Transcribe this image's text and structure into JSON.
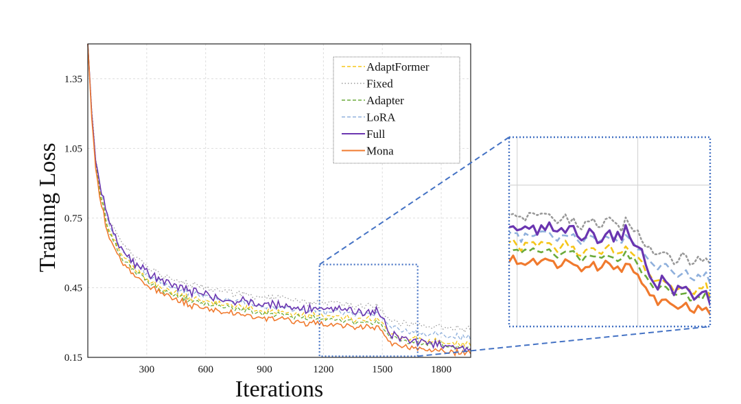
{
  "chart_data": {
    "type": "line",
    "xlabel": "Iterations",
    "ylabel": "Training Loss",
    "xlim": [
      0,
      1950
    ],
    "ylim": [
      0.15,
      1.5
    ],
    "xticks": [
      300,
      600,
      900,
      1200,
      1500,
      1800
    ],
    "xtick_labels": [
      "300",
      "600",
      "900",
      "1200",
      "1500",
      "1800"
    ],
    "yticks": [
      0.15,
      0.45,
      0.75,
      1.05,
      1.35
    ],
    "ytick_labels": [
      "0.15",
      "0.45",
      "0.75",
      "1.05",
      "1.35"
    ],
    "grid": true,
    "legend_position": "top-right",
    "inset": {
      "type": "zoom",
      "xlim": [
        1180,
        1680
      ],
      "ylim": [
        0.155,
        0.55
      ],
      "location": "right"
    },
    "series": [
      {
        "name": "AdaptFormer",
        "color": "#f5c518",
        "style": "dashed",
        "base": [
          [
            0,
            1.5
          ],
          [
            20,
            1.2
          ],
          [
            40,
            1.0
          ],
          [
            60,
            0.88
          ],
          [
            100,
            0.72
          ],
          [
            150,
            0.62
          ],
          [
            200,
            0.56
          ],
          [
            300,
            0.49
          ],
          [
            400,
            0.44
          ],
          [
            500,
            0.41
          ],
          [
            600,
            0.39
          ],
          [
            700,
            0.38
          ],
          [
            800,
            0.365
          ],
          [
            900,
            0.35
          ],
          [
            1000,
            0.34
          ],
          [
            1100,
            0.33
          ],
          [
            1200,
            0.325
          ],
          [
            1300,
            0.32
          ],
          [
            1400,
            0.315
          ],
          [
            1500,
            0.31
          ],
          [
            1530,
            0.26
          ],
          [
            1600,
            0.24
          ],
          [
            1700,
            0.225
          ],
          [
            1800,
            0.215
          ],
          [
            1950,
            0.205
          ]
        ]
      },
      {
        "name": "Fixed",
        "color": "#999999",
        "style": "dotted",
        "base": [
          [
            0,
            1.5
          ],
          [
            20,
            1.22
          ],
          [
            40,
            1.02
          ],
          [
            60,
            0.9
          ],
          [
            100,
            0.76
          ],
          [
            150,
            0.67
          ],
          [
            200,
            0.61
          ],
          [
            300,
            0.545
          ],
          [
            400,
            0.5
          ],
          [
            500,
            0.47
          ],
          [
            600,
            0.45
          ],
          [
            700,
            0.435
          ],
          [
            800,
            0.42
          ],
          [
            900,
            0.41
          ],
          [
            1000,
            0.4
          ],
          [
            1100,
            0.39
          ],
          [
            1200,
            0.385
          ],
          [
            1300,
            0.375
          ],
          [
            1400,
            0.37
          ],
          [
            1500,
            0.36
          ],
          [
            1530,
            0.32
          ],
          [
            1600,
            0.3
          ],
          [
            1700,
            0.29
          ],
          [
            1800,
            0.28
          ],
          [
            1950,
            0.27
          ]
        ]
      },
      {
        "name": "Adapter",
        "color": "#6aaa3a",
        "style": "dashed",
        "base": [
          [
            0,
            1.5
          ],
          [
            20,
            1.19
          ],
          [
            40,
            0.99
          ],
          [
            60,
            0.87
          ],
          [
            100,
            0.71
          ],
          [
            150,
            0.61
          ],
          [
            200,
            0.55
          ],
          [
            300,
            0.48
          ],
          [
            400,
            0.43
          ],
          [
            500,
            0.4
          ],
          [
            600,
            0.38
          ],
          [
            700,
            0.37
          ],
          [
            800,
            0.355
          ],
          [
            900,
            0.34
          ],
          [
            1000,
            0.33
          ],
          [
            1100,
            0.32
          ],
          [
            1200,
            0.312
          ],
          [
            1300,
            0.305
          ],
          [
            1400,
            0.3
          ],
          [
            1500,
            0.295
          ],
          [
            1530,
            0.245
          ],
          [
            1600,
            0.225
          ],
          [
            1700,
            0.21
          ],
          [
            1800,
            0.2
          ],
          [
            1950,
            0.19
          ]
        ]
      },
      {
        "name": "LoRA",
        "color": "#8fb0dc",
        "style": "dashed",
        "base": [
          [
            0,
            1.5
          ],
          [
            20,
            1.2
          ],
          [
            40,
            1.0
          ],
          [
            60,
            0.9
          ],
          [
            100,
            0.74
          ],
          [
            150,
            0.64
          ],
          [
            200,
            0.58
          ],
          [
            300,
            0.51
          ],
          [
            400,
            0.46
          ],
          [
            500,
            0.43
          ],
          [
            600,
            0.41
          ],
          [
            700,
            0.4
          ],
          [
            800,
            0.385
          ],
          [
            900,
            0.37
          ],
          [
            1000,
            0.36
          ],
          [
            1100,
            0.352
          ],
          [
            1200,
            0.345
          ],
          [
            1300,
            0.34
          ],
          [
            1400,
            0.335
          ],
          [
            1500,
            0.33
          ],
          [
            1530,
            0.29
          ],
          [
            1600,
            0.27
          ],
          [
            1700,
            0.255
          ],
          [
            1800,
            0.245
          ],
          [
            1950,
            0.235
          ]
        ]
      },
      {
        "name": "Full",
        "color": "#6a35b0",
        "style": "solid",
        "base": [
          [
            0,
            1.5
          ],
          [
            20,
            1.2
          ],
          [
            40,
            1.0
          ],
          [
            60,
            0.9
          ],
          [
            100,
            0.76
          ],
          [
            150,
            0.64
          ],
          [
            200,
            0.58
          ],
          [
            300,
            0.52
          ],
          [
            400,
            0.47
          ],
          [
            500,
            0.44
          ],
          [
            600,
            0.42
          ],
          [
            700,
            0.4
          ],
          [
            800,
            0.39
          ],
          [
            900,
            0.38
          ],
          [
            1000,
            0.37
          ],
          [
            1100,
            0.36
          ],
          [
            1200,
            0.355
          ],
          [
            1300,
            0.35
          ],
          [
            1400,
            0.345
          ],
          [
            1500,
            0.34
          ],
          [
            1530,
            0.26
          ],
          [
            1600,
            0.235
          ],
          [
            1700,
            0.215
          ],
          [
            1800,
            0.2
          ],
          [
            1950,
            0.185
          ]
        ]
      },
      {
        "name": "Mona",
        "color": "#f07a2e",
        "style": "solid",
        "base": [
          [
            0,
            1.5
          ],
          [
            20,
            1.18
          ],
          [
            40,
            0.97
          ],
          [
            60,
            0.85
          ],
          [
            100,
            0.69
          ],
          [
            150,
            0.59
          ],
          [
            200,
            0.53
          ],
          [
            300,
            0.46
          ],
          [
            400,
            0.42
          ],
          [
            500,
            0.38
          ],
          [
            600,
            0.36
          ],
          [
            700,
            0.345
          ],
          [
            800,
            0.33
          ],
          [
            900,
            0.32
          ],
          [
            1000,
            0.31
          ],
          [
            1100,
            0.3
          ],
          [
            1200,
            0.29
          ],
          [
            1300,
            0.285
          ],
          [
            1400,
            0.28
          ],
          [
            1500,
            0.275
          ],
          [
            1530,
            0.22
          ],
          [
            1600,
            0.2
          ],
          [
            1700,
            0.185
          ],
          [
            1800,
            0.175
          ],
          [
            1950,
            0.17
          ]
        ]
      }
    ]
  }
}
